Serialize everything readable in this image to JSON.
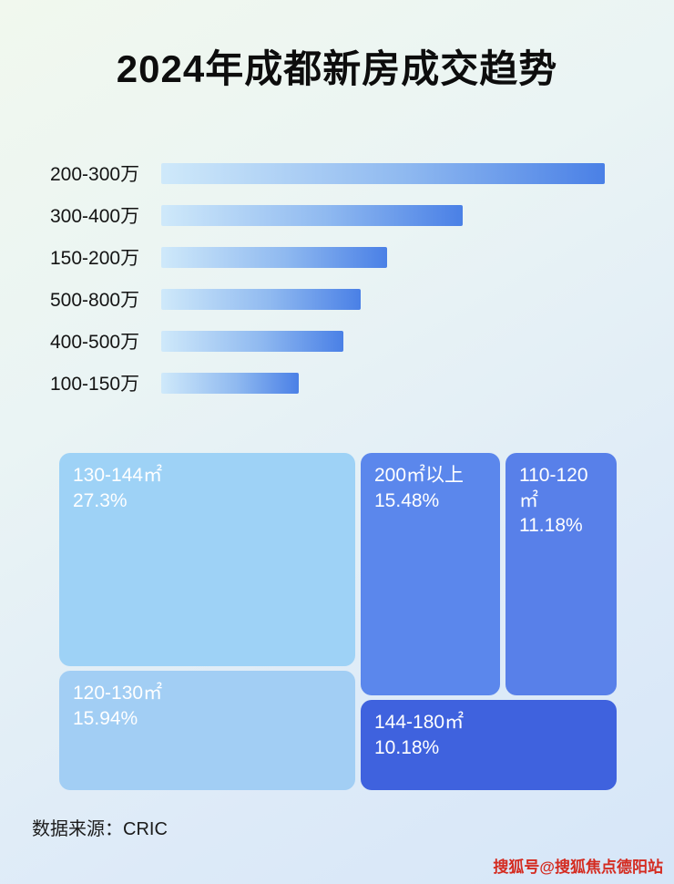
{
  "title": "2024年成都新房成交趋势",
  "chart_data": [
    {
      "type": "bar",
      "orientation": "horizontal",
      "categories": [
        "200-300万",
        "300-400万",
        "150-200万",
        "500-800万",
        "400-500万",
        "100-150万"
      ],
      "values": [
        100,
        68,
        51,
        45,
        41,
        31
      ],
      "value_scale": "relative bar length, longest bar = 100 (no numeric axis shown)",
      "xlabel": "",
      "ylabel": "",
      "grid": false,
      "legend": false
    },
    {
      "type": "treemap",
      "items": [
        {
          "label": "130-144㎡",
          "value": 27.3,
          "display": "27.3%"
        },
        {
          "label": "200㎡以上",
          "value": 15.48,
          "display": "15.48%"
        },
        {
          "label": "110-120㎡",
          "value": 11.18,
          "display": "11.18%"
        },
        {
          "label": "120-130㎡",
          "value": 15.94,
          "display": "15.94%"
        },
        {
          "label": "144-180㎡",
          "value": 10.18,
          "display": "10.18%"
        }
      ]
    }
  ],
  "footer": {
    "source_label": "数据来源：CRIC"
  },
  "watermark": "搜狐号@搜狐焦点德阳站",
  "colors": {
    "bar_gradient_start": "#cfe9fa",
    "bar_gradient_end": "#4a80e6",
    "treemap_light": "#9ed2f6",
    "treemap_medium": "#5b87ec",
    "treemap_dark": "#3f62de",
    "watermark_red": "#d42b20"
  }
}
